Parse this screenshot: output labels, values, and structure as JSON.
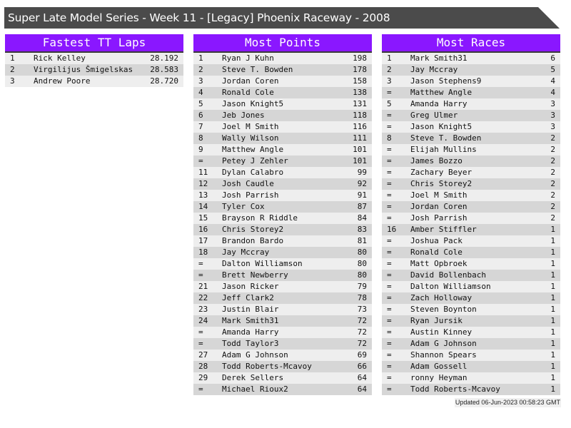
{
  "title": "Super Late Model Series - Week 11 - [Legacy] Phoenix Raceway - 2008",
  "colors": {
    "header_purple": "#8a17ff",
    "title_bar": "#4b4b4b",
    "row_light": "#eeeeee",
    "row_dark": "#d6d6d6"
  },
  "panels": [
    {
      "title": "Fastest TT Laps",
      "rows": [
        [
          "1",
          "Rick Kelley",
          "28.192"
        ],
        [
          "2",
          "Virgilijus Šmigelskas",
          "28.583"
        ],
        [
          "3",
          "Andrew Poore",
          "28.720"
        ]
      ]
    },
    {
      "title": "Most Points",
      "rows": [
        [
          "1",
          "Ryan J Kuhn",
          "198"
        ],
        [
          "2",
          "Steve T. Bowden",
          "178"
        ],
        [
          "3",
          "Jordan Coren",
          "158"
        ],
        [
          "4",
          "Ronald Cole",
          "138"
        ],
        [
          "5",
          "Jason Knight5",
          "131"
        ],
        [
          "6",
          "Jeb Jones",
          "118"
        ],
        [
          "7",
          "Joel M Smith",
          "116"
        ],
        [
          "8",
          "Wally Wilson",
          "111"
        ],
        [
          "9",
          "Matthew Angle",
          "101"
        ],
        [
          "=",
          "Petey J Zehler",
          "101"
        ],
        [
          "11",
          "Dylan Calabro",
          "99"
        ],
        [
          "12",
          "Josh Caudle",
          "92"
        ],
        [
          "13",
          "Josh Parrish",
          "91"
        ],
        [
          "14",
          "Tyler Cox",
          "87"
        ],
        [
          "15",
          "Brayson R Riddle",
          "84"
        ],
        [
          "16",
          "Chris Storey2",
          "83"
        ],
        [
          "17",
          "Brandon Bardo",
          "81"
        ],
        [
          "18",
          "Jay Mccray",
          "80"
        ],
        [
          "=",
          "Dalton Williamson",
          "80"
        ],
        [
          "=",
          "Brett Newberry",
          "80"
        ],
        [
          "21",
          "Jason Ricker",
          "79"
        ],
        [
          "22",
          "Jeff Clark2",
          "78"
        ],
        [
          "23",
          "Justin Blair",
          "73"
        ],
        [
          "24",
          "Mark Smith31",
          "72"
        ],
        [
          "=",
          "Amanda Harry",
          "72"
        ],
        [
          "=",
          "Todd Taylor3",
          "72"
        ],
        [
          "27",
          "Adam G Johnson",
          "69"
        ],
        [
          "28",
          "Todd Roberts-Mcavoy",
          "66"
        ],
        [
          "29",
          "Derek Sellers",
          "64"
        ],
        [
          "=",
          "Michael Rioux2",
          "64"
        ]
      ]
    },
    {
      "title": "Most Races",
      "rows": [
        [
          "1",
          "Mark Smith31",
          "6"
        ],
        [
          "2",
          "Jay Mccray",
          "5"
        ],
        [
          "3",
          "Jason Stephens9",
          "4"
        ],
        [
          "=",
          "Matthew Angle",
          "4"
        ],
        [
          "5",
          "Amanda Harry",
          "3"
        ],
        [
          "=",
          "Greg Ulmer",
          "3"
        ],
        [
          "=",
          "Jason Knight5",
          "3"
        ],
        [
          "8",
          "Steve T. Bowden",
          "2"
        ],
        [
          "=",
          "Elijah Mullins",
          "2"
        ],
        [
          "=",
          "James Bozzo",
          "2"
        ],
        [
          "=",
          "Zachary Beyer",
          "2"
        ],
        [
          "=",
          "Chris Storey2",
          "2"
        ],
        [
          "=",
          "Joel M Smith",
          "2"
        ],
        [
          "=",
          "Jordan Coren",
          "2"
        ],
        [
          "=",
          "Josh Parrish",
          "2"
        ],
        [
          "16",
          "Amber Stiffler",
          "1"
        ],
        [
          "=",
          "Joshua Pack",
          "1"
        ],
        [
          "=",
          "Ronald Cole",
          "1"
        ],
        [
          "=",
          "Matt Opbroek",
          "1"
        ],
        [
          "=",
          "David Bollenbach",
          "1"
        ],
        [
          "=",
          "Dalton Williamson",
          "1"
        ],
        [
          "=",
          "Zach Holloway",
          "1"
        ],
        [
          "=",
          "Steven Boynton",
          "1"
        ],
        [
          "=",
          "Ryan Jursik",
          "1"
        ],
        [
          "=",
          "Austin Kinney",
          "1"
        ],
        [
          "=",
          "Adam G Johnson",
          "1"
        ],
        [
          "=",
          "Shannon Spears",
          "1"
        ],
        [
          "=",
          "Adam Gossell",
          "1"
        ],
        [
          "=",
          "ronny Heyman",
          "1"
        ],
        [
          "=",
          "Todd Roberts-Mcavoy",
          "1"
        ]
      ]
    }
  ],
  "updated": "Updated 06-Jun-2023 00:58:23 GMT"
}
